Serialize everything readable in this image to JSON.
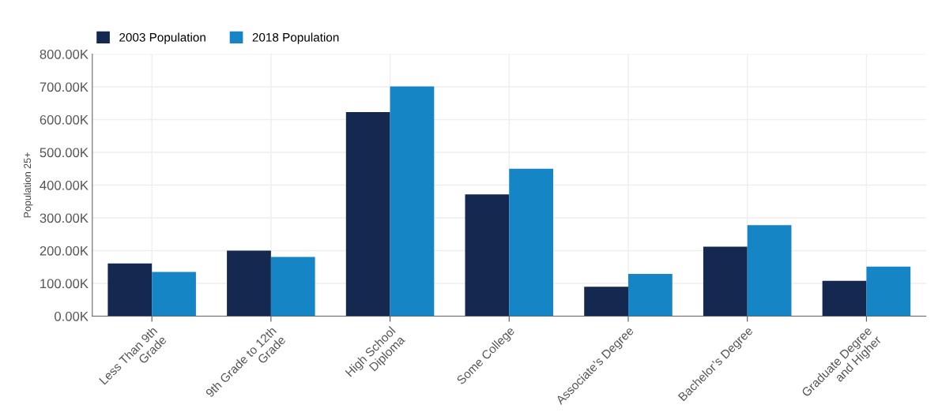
{
  "chart_data": {
    "type": "bar",
    "ylabel": "Population 25+",
    "categories": [
      "Less Than 9th\nGrade",
      "9th Grade to 12th\nGrade",
      "High School\nDiploma",
      "Some College",
      "Associate’s Degree",
      "Bachelor’s Degree",
      "Graduate Degree\nand Higher"
    ],
    "series": [
      {
        "name": "2003 Population",
        "color": "#15284f",
        "values": [
          161000,
          200000,
          623000,
          372000,
          90000,
          212000,
          108000
        ]
      },
      {
        "name": "2018 Population",
        "color": "#1585c5",
        "values": [
          135000,
          181000,
          701000,
          450000,
          129000,
          278000,
          151000
        ]
      }
    ],
    "ylim": [
      0,
      800000
    ],
    "yticks": [
      {
        "value": 0,
        "label": "0.00K"
      },
      {
        "value": 100000,
        "label": "100.00K"
      },
      {
        "value": 200000,
        "label": "200.00K"
      },
      {
        "value": 300000,
        "label": "300.00K"
      },
      {
        "value": 400000,
        "label": "400.00K"
      },
      {
        "value": 500000,
        "label": "500.00K"
      },
      {
        "value": 600000,
        "label": "600.00K"
      },
      {
        "value": 700000,
        "label": "700.00K"
      },
      {
        "value": 800000,
        "label": "800.00K"
      }
    ],
    "grid": true,
    "legend": "top left"
  }
}
